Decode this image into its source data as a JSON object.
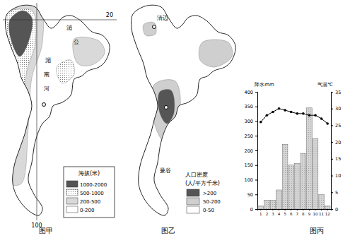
{
  "captions": [
    "图甲",
    "图乙",
    "图丙"
  ],
  "maps": [
    {
      "labels": [
        "20",
        "100",
        "湄",
        "公",
        "湄",
        "南",
        "河"
      ],
      "legend": {
        "title": "海拔(米)",
        "items": [
          "1000-2000",
          "500-1000",
          "200-500",
          "0-200"
        ]
      }
    },
    {
      "labels": [
        "清迈",
        "曼谷"
      ],
      "legend": {
        "title": "人口密度",
        "subtitle": "(人/平方千米)",
        "items": [
          ">200",
          "50-200",
          "0-50"
        ]
      }
    }
  ],
  "chart_data": {
    "type": "bar",
    "categories": [
      "1",
      "2",
      "3",
      "4",
      "5",
      "6",
      "7",
      "8",
      "9",
      "10",
      "11",
      "12"
    ],
    "y_label": "降水mm",
    "y2_label": "气温℃",
    "ylim": [
      0,
      400
    ],
    "yticks": [
      0,
      50,
      100,
      150,
      200,
      250,
      300,
      350,
      400
    ],
    "y2lim": [
      0,
      35
    ],
    "y2ticks": [
      0,
      5,
      10,
      15,
      20,
      25,
      30,
      35
    ],
    "series": [
      {
        "type": "bar",
        "color": "#bdbdbd",
        "values": [
          10,
          30,
          30,
          65,
          220,
          150,
          155,
          190,
          345,
          240,
          50,
          10
        ]
      },
      {
        "type": "line",
        "axis": "y2",
        "color": "#000000",
        "marker": "circle",
        "values": [
          26,
          28,
          29,
          30,
          29.5,
          29,
          28.5,
          28.5,
          28,
          28,
          27,
          25.5
        ]
      }
    ]
  }
}
